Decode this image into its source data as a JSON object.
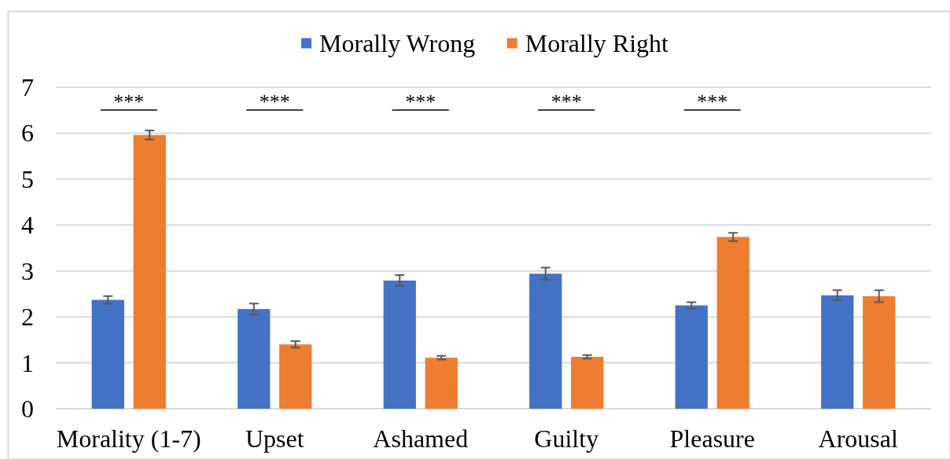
{
  "chart_data": {
    "type": "bar",
    "categories": [
      "Morality (1-7)",
      "Upset",
      "Ashamed",
      "Guilty",
      "Pleasure",
      "Arousal"
    ],
    "series": [
      {
        "name": "Morally Wrong",
        "color": "#4472c4",
        "values": [
          2.37,
          2.17,
          2.79,
          2.94,
          2.25,
          2.47
        ],
        "errors": [
          0.08,
          0.12,
          0.12,
          0.13,
          0.07,
          0.11
        ]
      },
      {
        "name": "Morally Right",
        "color": "#ed7d31",
        "values": [
          5.96,
          1.4,
          1.11,
          1.13,
          3.74,
          2.45
        ],
        "errors": [
          0.1,
          0.07,
          0.04,
          0.04,
          0.09,
          0.13
        ]
      }
    ],
    "ylim": [
      0,
      7
    ],
    "yticks": [
      0,
      1,
      2,
      3,
      4,
      5,
      6,
      7
    ],
    "grid": "y",
    "legend": "top",
    "annotations": [
      "***",
      "***",
      "***",
      "***",
      "***"
    ]
  }
}
